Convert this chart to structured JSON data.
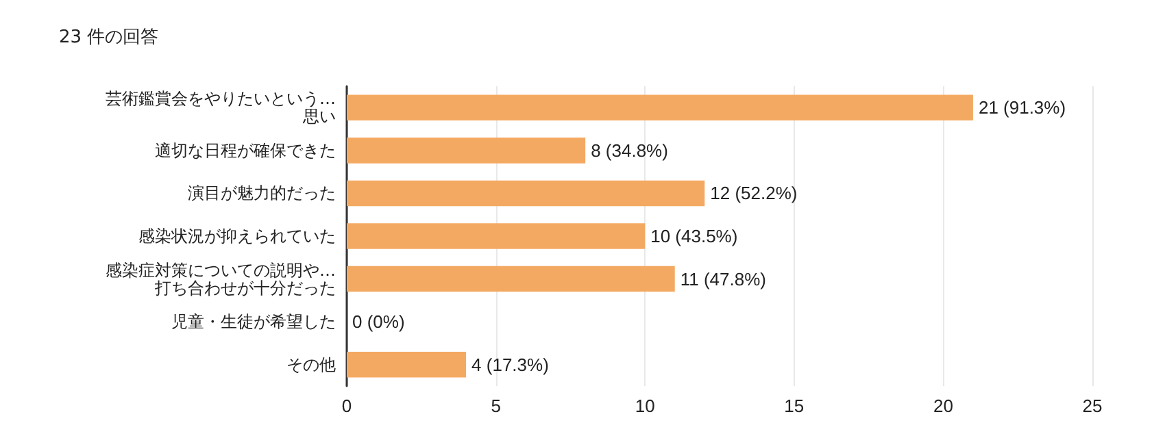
{
  "chart_data": {
    "type": "bar",
    "orientation": "horizontal",
    "title": "23 件の回答",
    "categories": [
      "芸術鑑賞会をやりたいという…\n思い",
      "適切な日程が確保できた",
      "演目が魅力的だった",
      "感染状況が抑えられていた",
      "感染症対策についての説明や…\n打ち合わせが十分だった",
      "児童・生徒が希望した",
      "その他"
    ],
    "values": [
      21,
      8,
      12,
      10,
      11,
      0,
      4
    ],
    "value_labels": [
      "21 (91.3%)",
      "8 (34.8%)",
      "12 (52.2%)",
      "10 (43.5%)",
      "11 (47.8%)",
      "0 (0%)",
      "4 (17.3%)"
    ],
    "color": "#f4a962",
    "xlim": [
      0,
      25
    ],
    "xticks": [
      0,
      5,
      10,
      15,
      20,
      25
    ],
    "grid": "x"
  }
}
